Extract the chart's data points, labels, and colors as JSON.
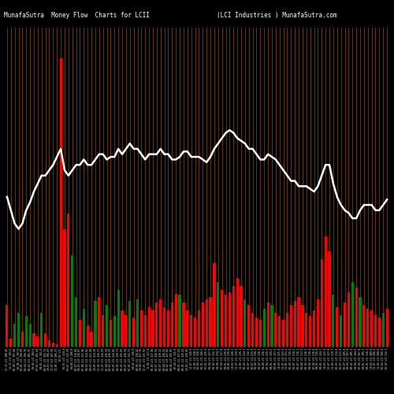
{
  "title_left": "MunafaSutra  Money Flow  Charts for LCII",
  "title_right": "(LCI Industries ) MunafaSutra.com",
  "background_color": "#000000",
  "bar_colors": [
    "red",
    "red",
    "green",
    "green",
    "red",
    "green",
    "green",
    "red",
    "red",
    "green",
    "red",
    "red",
    "red",
    "red",
    "red",
    "red",
    "red",
    "green",
    "green",
    "red",
    "green",
    "red",
    "red",
    "green",
    "red",
    "red",
    "green",
    "red",
    "green",
    "green",
    "red",
    "red",
    "green",
    "red",
    "green",
    "red",
    "red",
    "red",
    "red",
    "red",
    "red",
    "red",
    "red",
    "red",
    "red",
    "green",
    "red",
    "red",
    "red",
    "red",
    "red",
    "red",
    "red",
    "red",
    "red",
    "green",
    "red",
    "red",
    "red",
    "red",
    "red",
    "red",
    "green",
    "red",
    "red",
    "red",
    "red",
    "green",
    "red",
    "green",
    "red",
    "red",
    "red",
    "red",
    "red",
    "red",
    "red",
    "red",
    "red",
    "red",
    "red",
    "red",
    "red",
    "red",
    "red",
    "green",
    "red",
    "green",
    "red",
    "red",
    "green",
    "red",
    "green",
    "red",
    "red",
    "red",
    "red",
    "red",
    "green",
    "red"
  ],
  "bar_heights": [
    55,
    10,
    30,
    45,
    20,
    40,
    30,
    18,
    14,
    45,
    18,
    8,
    5,
    3,
    380,
    155,
    175,
    120,
    65,
    35,
    50,
    28,
    20,
    60,
    65,
    42,
    55,
    35,
    40,
    75,
    48,
    42,
    60,
    38,
    62,
    48,
    42,
    52,
    48,
    58,
    62,
    52,
    48,
    58,
    70,
    68,
    58,
    48,
    42,
    38,
    48,
    58,
    62,
    65,
    110,
    85,
    75,
    68,
    72,
    80,
    90,
    80,
    62,
    55,
    45,
    38,
    35,
    50,
    58,
    55,
    45,
    40,
    35,
    45,
    55,
    60,
    65,
    55,
    45,
    40,
    48,
    62,
    115,
    145,
    125,
    68,
    52,
    42,
    58,
    72,
    85,
    78,
    65,
    55,
    50,
    48,
    42,
    38,
    45,
    50
  ],
  "line_values": [
    210,
    205,
    200,
    198,
    200,
    205,
    208,
    212,
    215,
    218,
    218,
    220,
    222,
    225,
    228,
    220,
    218,
    220,
    222,
    222,
    224,
    222,
    222,
    224,
    226,
    226,
    224,
    225,
    225,
    228,
    226,
    228,
    230,
    228,
    228,
    226,
    224,
    226,
    226,
    226,
    228,
    226,
    226,
    224,
    224,
    225,
    227,
    227,
    225,
    225,
    225,
    224,
    223,
    225,
    228,
    230,
    232,
    234,
    235,
    234,
    232,
    231,
    230,
    228,
    228,
    226,
    224,
    224,
    226,
    225,
    224,
    222,
    220,
    218,
    216,
    216,
    214,
    214,
    214,
    213,
    212,
    214,
    218,
    222,
    222,
    215,
    210,
    207,
    205,
    204,
    202,
    202,
    205,
    207,
    207,
    207,
    205,
    205,
    207,
    209
  ],
  "labels": [
    "11-13 LCI 180.49",
    "12-11 LCI 193.5",
    "01-09 LCI 197.68",
    "02-06 LCI 197.6",
    "03-05 LCI 190.09",
    "04-04 LCI 196.76",
    "05-02 LCI 205.75",
    "06-04 LCI 204.0",
    "07-02 LCI 201.64",
    "08-01 LCI 201.6",
    "09-05 LCI 193.71",
    "10-03 LCI 196.47",
    "11-07 LCI 197.39",
    "12-05 LCI 206.27",
    "01-07 LCI",
    "02-01 LCI 214.4",
    "03-07 LCI 211.29",
    "04-04 LCI 208.8",
    "05-07 LCI 214.49",
    "06-01 LCI 218.87",
    "07-06 LCI 221.06",
    "08-03 LCI 224.82",
    "09-07 LCI 221.88",
    "10-05 LCI 224.58",
    "11-02 LCI 226.17",
    "12-07 LCI 226.03",
    "01-04 LCI 225.24",
    "02-01 LCI 226.33",
    "03-01 LCI 224.85",
    "04-05 LCI 229.71",
    "05-03 LCI 225.03",
    "06-07 LCI 228.34",
    "07-05 LCI 231.71",
    "08-02 LCI 230.0",
    "09-06 LCI 228.42",
    "10-04 LCI 227.76",
    "11-01 LCI 225.93",
    "12-06 LCI 227.4",
    "01-03 LCI 227.46",
    "02-07 LCI 228.43",
    "03-07 LCI 229.22",
    "04-04 LCI 228.23",
    "05-02 LCI 227.82",
    "06-06 LCI 225.95",
    "07-04 LCI 225.0",
    "08-01 LCI 227.54",
    "09-05 LCI 229.63",
    "10-03 LCI 229.66",
    "11-07 LCI 228.3",
    "12-05 LCI 228.5",
    "01-04 LCI 228.1",
    "02-01 LCI 226.5",
    "03-01 LCI 226.2",
    "04-04 LCI 227.9",
    "05-02 LCI 232.1",
    "06-06 LCI 234.5",
    "07-04 LCI 237.8",
    "08-01 LCI 239.6",
    "09-05 LCI 239.8",
    "10-03 LCI 240.1",
    "11-07 LCI 238.2",
    "12-05 LCI 236.1",
    "01-03 LCI 234.7",
    "02-07 LCI 232.3",
    "03-07 LCI 231.9",
    "04-04 LCI 230.1",
    "05-02 LCI 228.3",
    "06-06 LCI 228.5",
    "07-04 LCI 229.7",
    "08-01 LCI 229.5",
    "09-05 LCI 227.3",
    "10-03 LCI 225.8",
    "11-07 LCI 223.5",
    "12-05 LCI 221.2",
    "01-03 LCI 219.8",
    "02-07 LCI 219.5",
    "03-07 LCI 218.1",
    "04-04 LCI 217.9",
    "05-02 LCI 218.2",
    "06-06 LCI 218.4",
    "07-04 LCI 218.6",
    "08-01 LCI 219.8",
    "09-05 LCI 224.7",
    "10-03 LCI 227.6",
    "11-07 LCI 227.8",
    "12-05 LCI 219.7",
    "01-03 LCI 214.8",
    "02-07 LCI 211.9",
    "03-07 LCI 209.6",
    "04-04 LCI 207.8",
    "05-02 LCI 205.1",
    "06-06 LCI 204.9",
    "07-04 LCI 207.8",
    "08-01 LCI 209.7",
    "09-05 LCI 210.1",
    "10-03 LCI 209.8",
    "11-07 LCI 208.2",
    "12-05 LCI 208.0",
    "01-03 LCI 209.6",
    "02-07 LCI 212.1"
  ]
}
